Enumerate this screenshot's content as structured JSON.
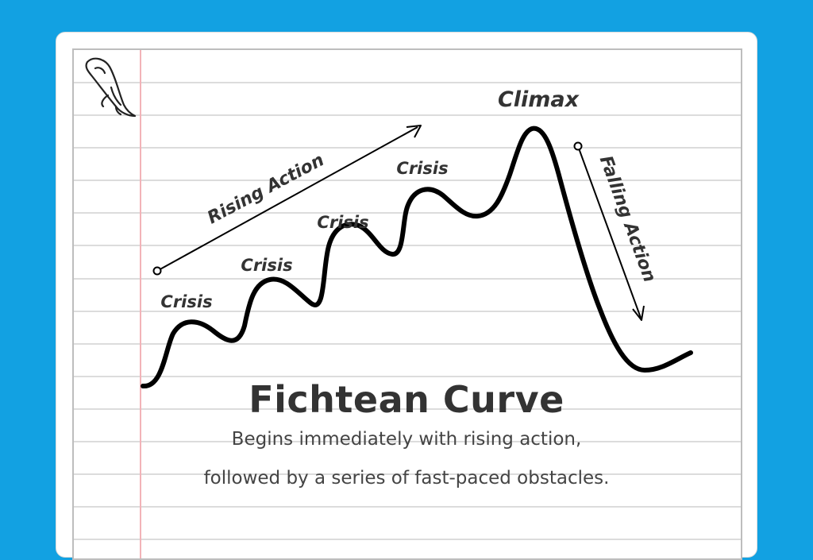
{
  "diagram": {
    "title": "Fichtean Curve",
    "description_line1": "Begins immediately with rising action,",
    "description_line2": "followed by a series of fast-paced obstacles.",
    "labels": {
      "rising_action": "Rising Action",
      "falling_action": "Falling Action",
      "climax": "Climax",
      "crisis_1": "Crisis",
      "crisis_2": "Crisis",
      "crisis_3": "Crisis",
      "crisis_4": "Crisis"
    }
  },
  "colors": {
    "background": "#12a1e2",
    "paper": "#ffffff",
    "rule_line": "#dcdcdc",
    "margin_line": "#f2b3b8",
    "ink": "#000000",
    "text": "#333333"
  },
  "icons": {
    "logo": "feather-quill-icon"
  }
}
